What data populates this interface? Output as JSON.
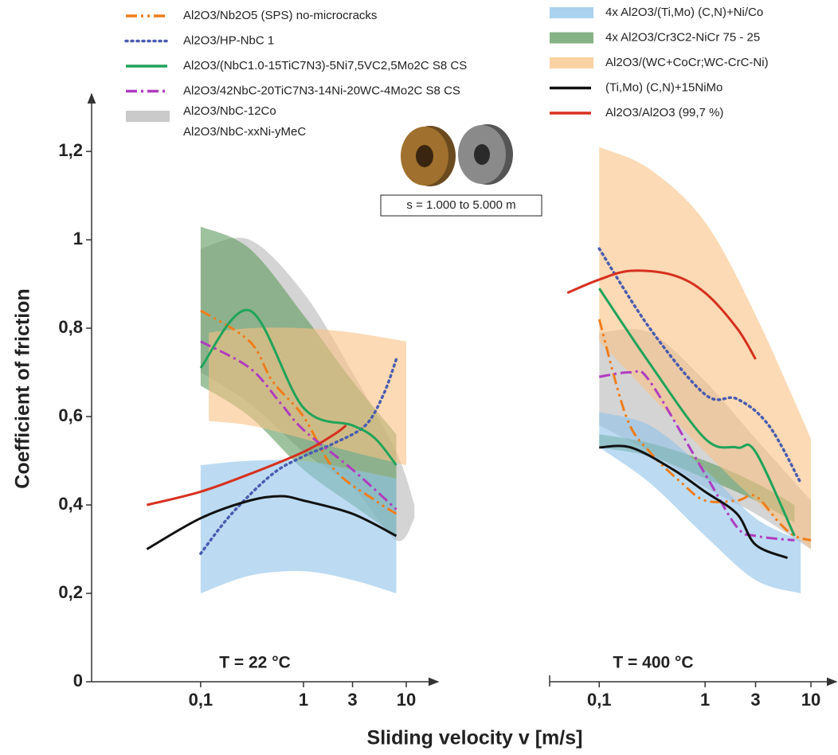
{
  "chart_data": {
    "type": "line",
    "x_label": "Sliding velocity v [m/s]",
    "y_label": "Coefficient of friction",
    "annotation": "s = 1.000 to 5.000 m",
    "x_scale": "log",
    "ylim": [
      0,
      1.33
    ],
    "yticks": [
      0,
      {
        "value": 0.2,
        "label": "0,2"
      },
      {
        "value": 0.4,
        "label": "0,4"
      },
      {
        "value": 0.6,
        "label": "0,6"
      },
      {
        "value": 0.8,
        "label": "0,8"
      },
      1,
      {
        "value": 1.2,
        "label": "1,2"
      }
    ],
    "xticks": [
      {
        "value": 0.1,
        "label": "0,1"
      },
      1,
      3,
      10
    ],
    "panels": [
      {
        "title": "T = 22 °C",
        "xlim": [
          0.0087,
          20.4
        ]
      },
      {
        "title": "T = 400 °C",
        "xlim": [
          0.034,
          17.4
        ]
      }
    ],
    "series": [
      {
        "name": "Al2O3/Nb2O5 (SPS) no-microcracks",
        "color": "#f07d1a",
        "kind": "line",
        "style": "dash-dot-dot",
        "data": [
          {
            "x": [
              0.1,
              0.3,
              0.5,
              1,
              2,
              5,
              8
            ],
            "values": [
              0.84,
              0.77,
              0.68,
              0.6,
              0.48,
              0.41,
              0.38
            ]
          },
          {
            "x": [
              0.1,
              0.18,
              0.3,
              0.6,
              1,
              2,
              3,
              5,
              7,
              10
            ],
            "values": [
              0.82,
              0.6,
              0.52,
              0.45,
              0.41,
              0.41,
              0.42,
              0.36,
              0.33,
              0.32
            ]
          }
        ]
      },
      {
        "name": "Al2O3/HP-NbC 1",
        "color": "#4a5cb0",
        "kind": "line",
        "style": "dotted",
        "data": [
          {
            "x": [
              0.1,
              0.2,
              0.5,
              1,
              2,
              4,
              6,
              8
            ],
            "values": [
              0.29,
              0.38,
              0.47,
              0.51,
              0.54,
              0.58,
              0.65,
              0.73
            ]
          },
          {
            "x": [
              0.1,
              0.3,
              1,
              2,
              4,
              8
            ],
            "values": [
              0.98,
              0.8,
              0.65,
              0.64,
              0.58,
              0.45
            ]
          }
        ]
      },
      {
        "name": "Al2O3/(NbC1.0-15TiC7N3)-5Ni7,5VC2,5Mo2C S8 CS",
        "color": "#1fa45a",
        "kind": "line",
        "style": "solid",
        "data": [
          {
            "x": [
              0.1,
              0.3,
              1,
              3,
              5,
              8
            ],
            "values": [
              0.71,
              0.84,
              0.62,
              0.58,
              0.55,
              0.49
            ]
          },
          {
            "x": [
              0.1,
              0.3,
              1,
              2,
              3,
              7
            ],
            "values": [
              0.89,
              0.72,
              0.55,
              0.53,
              0.52,
              0.33
            ]
          }
        ]
      },
      {
        "name": "Al2O3/42NbC-20TiC7N3-14Ni-20WC-4Mo2C S8 CS",
        "color": "#b03cc0",
        "kind": "line",
        "style": "dash-dot",
        "data": [
          {
            "x": [
              0.1,
              0.3,
              0.6,
              1,
              3,
              8
            ],
            "values": [
              0.77,
              0.71,
              0.63,
              0.57,
              0.48,
              0.39
            ]
          },
          {
            "x": [
              0.1,
              0.2,
              0.3,
              1,
              2,
              3,
              7
            ],
            "values": [
              0.69,
              0.7,
              0.68,
              0.47,
              0.35,
              0.33,
              0.32
            ]
          }
        ]
      },
      {
        "name": [
          "Al2O3/NbC-12Co",
          "Al2O3/NbC-xxNi-yMeC"
        ],
        "color": "#b8b8b8",
        "kind": "band",
        "data": [
          {
            "x": [
              0.1,
              0.3,
              1,
              3,
              8,
              12
            ],
            "lower": [
              0.7,
              0.63,
              0.52,
              0.44,
              0.32,
              0.37
            ],
            "upper": [
              0.98,
              1.0,
              0.88,
              0.7,
              0.52,
              0.4
            ]
          },
          {
            "x": [
              0.1,
              0.3,
              1,
              3,
              10
            ],
            "lower": [
              0.58,
              0.52,
              0.44,
              0.38,
              0.3
            ],
            "upper": [
              0.79,
              0.79,
              0.68,
              0.55,
              0.41
            ]
          }
        ]
      },
      {
        "name": "4x Al2O3/(Ti,Mo) (C,N)+Ni/Co",
        "color": "#8fc3ea",
        "kind": "band",
        "data": [
          {
            "x": [
              0.1,
              0.3,
              1,
              3,
              8
            ],
            "lower": [
              0.2,
              0.24,
              0.25,
              0.23,
              0.2
            ],
            "upper": [
              0.49,
              0.5,
              0.5,
              0.48,
              0.46
            ]
          },
          {
            "x": [
              0.1,
              0.3,
              1,
              3,
              8
            ],
            "lower": [
              0.53,
              0.45,
              0.33,
              0.23,
              0.2
            ],
            "upper": [
              0.61,
              0.58,
              0.48,
              0.37,
              0.32
            ]
          }
        ]
      },
      {
        "name": "4x Al2O3/Cr3C2-NiCr 75 - 25",
        "color": "#5e9a5c",
        "kind": "band",
        "data": [
          {
            "x": [
              0.1,
              0.3,
              1,
              3,
              8
            ],
            "lower": [
              0.67,
              0.6,
              0.48,
              0.4,
              0.33
            ],
            "upper": [
              1.03,
              0.98,
              0.83,
              0.68,
              0.56
            ]
          },
          {
            "x": [
              0.1,
              0.3,
              1,
              3,
              7
            ],
            "lower": [
              0.53,
              0.51,
              0.46,
              0.41,
              0.36
            ],
            "upper": [
              0.56,
              0.54,
              0.5,
              0.45,
              0.4
            ]
          }
        ]
      },
      {
        "name": "Al2O3/(WC+CoCr;WC-CrC-Ni)",
        "color": "#f8c283",
        "kind": "band",
        "data": [
          {
            "x": [
              0.12,
              0.3,
              1,
              3,
              10
            ],
            "lower": [
              0.59,
              0.58,
              0.55,
              0.52,
              0.49
            ],
            "upper": [
              0.79,
              0.8,
              0.8,
              0.79,
              0.77
            ]
          },
          {
            "x": [
              0.1,
              0.3,
              1,
              3,
              10
            ],
            "lower": [
              0.77,
              0.65,
              0.52,
              0.41,
              0.3
            ],
            "upper": [
              1.21,
              1.16,
              1.04,
              0.83,
              0.55
            ]
          }
        ]
      },
      {
        "name": "(Ti,Mo) (C,N)+15NiMo",
        "color": "#111111",
        "kind": "line",
        "style": "solid",
        "data": [
          {
            "x": [
              0.03,
              0.1,
              0.3,
              0.6,
              1,
              3,
              8
            ],
            "values": [
              0.3,
              0.37,
              0.41,
              0.42,
              0.41,
              0.38,
              0.33
            ]
          },
          {
            "x": [
              0.1,
              0.2,
              0.5,
              1,
              2,
              3,
              6
            ],
            "values": [
              0.53,
              0.53,
              0.48,
              0.43,
              0.38,
              0.31,
              0.28
            ]
          }
        ]
      },
      {
        "name": "Al2O3/Al2O3 (99,7 %)",
        "color": "#d7301f",
        "kind": "line",
        "style": "solid",
        "data": [
          {
            "x": [
              0.03,
              0.1,
              0.3,
              1,
              2,
              2.6
            ],
            "values": [
              0.4,
              0.43,
              0.47,
              0.52,
              0.56,
              0.58
            ]
          },
          {
            "x": [
              0.05,
              0.1,
              0.2,
              0.5,
              1,
              2,
              3
            ],
            "values": [
              0.88,
              0.91,
              0.93,
              0.92,
              0.88,
              0.8,
              0.73
            ]
          }
        ]
      }
    ]
  }
}
